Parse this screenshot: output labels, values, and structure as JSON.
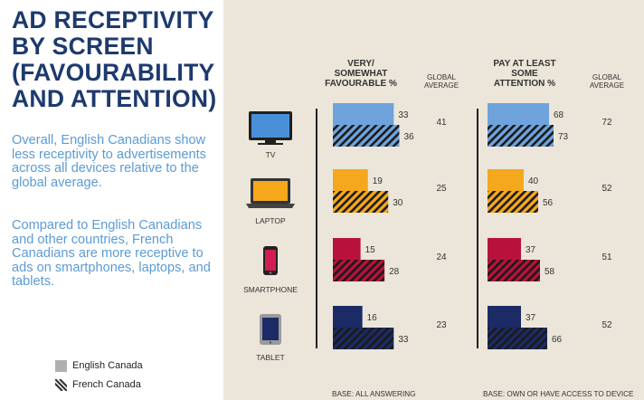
{
  "title": "AD RECEPTIVITY\nBY SCREEN\n(FAVOURABILITY\nAND ATTENTION)",
  "paragraphs": [
    "Overall, English Canadians show less receptivity to advertisements across all devices relative to the global average.",
    "Compared to English Canadians and other countries, French Canadians are more receptive to ads on smartphones, laptops, and tablets."
  ],
  "legend": [
    {
      "label": "English Canada",
      "swatch": "solid"
    },
    {
      "label": "French Canada",
      "swatch": "hatched"
    }
  ],
  "colors": {
    "title": "#1d3a6e",
    "body_text": "#5b9bd5",
    "panel_bg": "#ebe6d9",
    "legend_grey": "#b0b0b0",
    "tv": "#6ea3dc",
    "laptop": "#f5a81c",
    "smartphone": "#b8123a",
    "tablet": "#1c2b66"
  },
  "chart_data": {
    "type": "bar",
    "orientation": "horizontal",
    "categories": [
      "TV",
      "LAPTOP",
      "SMARTPHONE",
      "TABLET"
    ],
    "device_icons": [
      "tv-icon",
      "laptop-icon",
      "smartphone-icon",
      "tablet-icon"
    ],
    "series_names": [
      "English Canada",
      "French Canada"
    ],
    "global_average_header": "GLOBAL\nAVERAGE",
    "panels": [
      {
        "title": "VERY/\nSOMEWHAT\nFAVOURABLE %",
        "english": [
          33,
          19,
          15,
          16
        ],
        "french": [
          36,
          30,
          28,
          33
        ],
        "global_average": [
          41,
          25,
          24,
          23
        ],
        "base": "BASE: ALL ANSWERING"
      },
      {
        "title": "PAY AT LEAST\nSOME\nATTENTION %",
        "english": [
          68,
          40,
          37,
          37
        ],
        "french": [
          73,
          56,
          58,
          66
        ],
        "global_average": [
          72,
          52,
          51,
          52
        ],
        "base": "BASE: OWN OR HAVE ACCESS TO DEVICE"
      }
    ]
  }
}
